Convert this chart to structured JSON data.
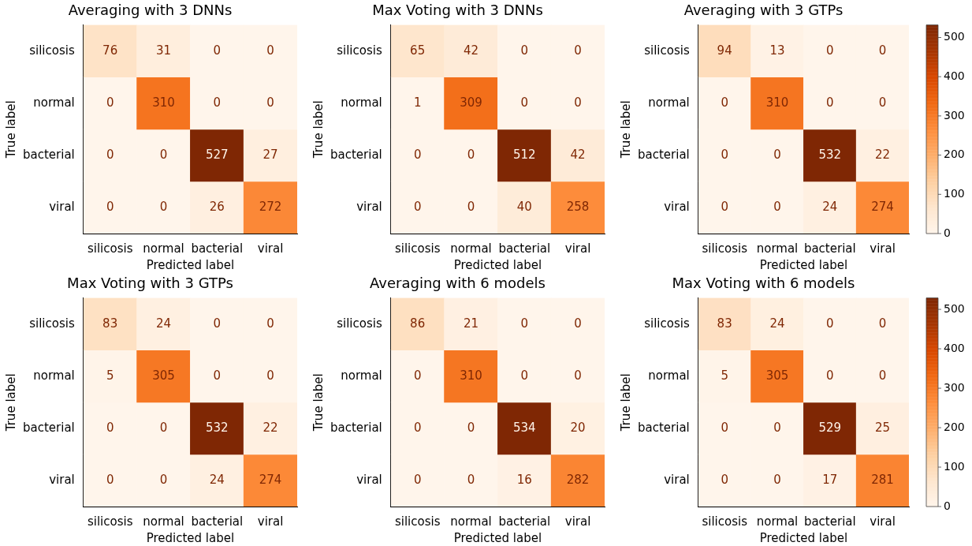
{
  "chart_data": [
    {
      "type": "heatmap",
      "title": "Averaging with 3 DNNs",
      "xlabel": "Predicted label",
      "ylabel": "True label",
      "categories": [
        "silicosis",
        "normal",
        "bacterial",
        "viral"
      ],
      "y_categories": [
        "silicosis",
        "normal",
        "bacterial",
        "viral"
      ],
      "cells": [
        [
          76,
          31,
          0,
          0
        ],
        [
          0,
          310,
          0,
          0
        ],
        [
          0,
          0,
          527,
          27
        ],
        [
          0,
          0,
          26,
          272
        ]
      ],
      "data_labels": true
    },
    {
      "type": "heatmap",
      "title": "Max Voting with 3 DNNs",
      "xlabel": "Predicted label",
      "ylabel": "True label",
      "categories": [
        "silicosis",
        "normal",
        "bacterial",
        "viral"
      ],
      "y_categories": [
        "silicosis",
        "normal",
        "bacterial",
        "viral"
      ],
      "cells": [
        [
          65,
          42,
          0,
          0
        ],
        [
          1,
          309,
          0,
          0
        ],
        [
          0,
          0,
          512,
          42
        ],
        [
          0,
          0,
          40,
          258
        ]
      ],
      "data_labels": true
    },
    {
      "type": "heatmap",
      "title": "Averaging with 3 GTPs",
      "xlabel": "Predicted label",
      "ylabel": "True label",
      "categories": [
        "silicosis",
        "normal",
        "bacterial",
        "viral"
      ],
      "y_categories": [
        "silicosis",
        "normal",
        "bacterial",
        "viral"
      ],
      "cells": [
        [
          94,
          13,
          0,
          0
        ],
        [
          0,
          310,
          0,
          0
        ],
        [
          0,
          0,
          532,
          22
        ],
        [
          0,
          0,
          24,
          274
        ]
      ],
      "data_labels": true,
      "clim": [
        0,
        532
      ],
      "cticks": [
        0,
        100,
        200,
        300,
        400,
        500
      ]
    },
    {
      "type": "heatmap",
      "title": "Max Voting with 3 GTPs",
      "xlabel": "Predicted label",
      "ylabel": "True label",
      "categories": [
        "silicosis",
        "normal",
        "bacterial",
        "viral"
      ],
      "y_categories": [
        "silicosis",
        "normal",
        "bacterial",
        "viral"
      ],
      "cells": [
        [
          83,
          24,
          0,
          0
        ],
        [
          5,
          305,
          0,
          0
        ],
        [
          0,
          0,
          532,
          22
        ],
        [
          0,
          0,
          24,
          274
        ]
      ],
      "data_labels": true
    },
    {
      "type": "heatmap",
      "title": "Averaging with 6 models",
      "xlabel": "Predicted label",
      "ylabel": "True label",
      "categories": [
        "silicosis",
        "normal",
        "bacterial",
        "viral"
      ],
      "y_categories": [
        "silicosis",
        "normal",
        "bacterial",
        "viral"
      ],
      "cells": [
        [
          86,
          21,
          0,
          0
        ],
        [
          0,
          310,
          0,
          0
        ],
        [
          0,
          0,
          534,
          20
        ],
        [
          0,
          0,
          16,
          282
        ]
      ],
      "data_labels": true
    },
    {
      "type": "heatmap",
      "title": "Max Voting with 6 models",
      "xlabel": "Predicted label",
      "ylabel": "True label",
      "categories": [
        "silicosis",
        "normal",
        "bacterial",
        "viral"
      ],
      "y_categories": [
        "silicosis",
        "normal",
        "bacterial",
        "viral"
      ],
      "cells": [
        [
          83,
          24,
          0,
          0
        ],
        [
          5,
          305,
          0,
          0
        ],
        [
          0,
          0,
          529,
          25
        ],
        [
          0,
          0,
          17,
          281
        ]
      ],
      "data_labels": true,
      "clim": [
        0,
        529
      ],
      "cticks": [
        0,
        100,
        200,
        300,
        400,
        500
      ]
    }
  ]
}
